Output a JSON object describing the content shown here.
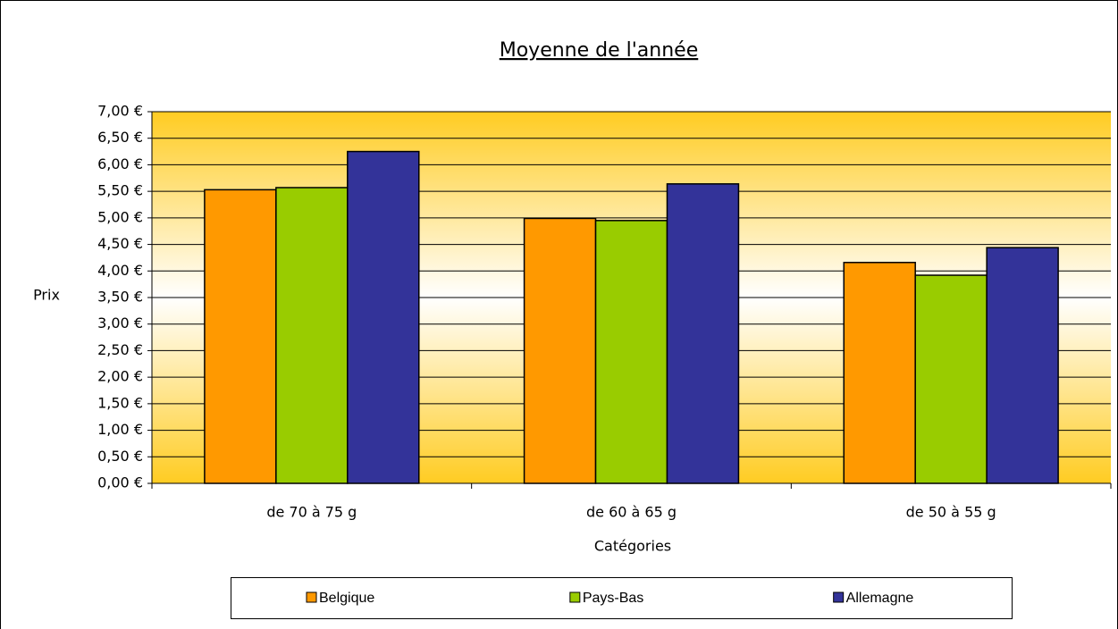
{
  "chart_data": {
    "type": "bar",
    "title": "Moyenne de l'année",
    "ylabel": "Prix",
    "xlabel": "Catégories",
    "categories": [
      "de 70 à 75 g",
      "de 60 à 65 g",
      "de 50 à 55 g"
    ],
    "series": [
      {
        "name": "Belgique",
        "color": "#ff9900",
        "values": [
          5.53,
          4.99,
          4.16
        ]
      },
      {
        "name": "Pays-Bas",
        "color": "#99cc00",
        "values": [
          5.57,
          4.95,
          3.92
        ]
      },
      {
        "name": "Allemagne",
        "color": "#333399",
        "values": [
          6.25,
          5.64,
          4.44
        ]
      }
    ],
    "ylim": [
      0,
      7
    ],
    "yticks": [
      {
        "value": 0,
        "label": "0,00 €"
      },
      {
        "value": 0.5,
        "label": "0,50 €"
      },
      {
        "value": 1,
        "label": "1,00 €"
      },
      {
        "value": 1.5,
        "label": "1,50 €"
      },
      {
        "value": 2,
        "label": "2,00 €"
      },
      {
        "value": 2.5,
        "label": "2,50 €"
      },
      {
        "value": 3,
        "label": "3,00 €"
      },
      {
        "value": 3.5,
        "label": "3,50 €"
      },
      {
        "value": 4,
        "label": "4,00 €"
      },
      {
        "value": 4.5,
        "label": "4,50 €"
      },
      {
        "value": 5,
        "label": "5,00 €"
      },
      {
        "value": 5.5,
        "label": "5,50 €"
      },
      {
        "value": 6,
        "label": "6,00 €"
      },
      {
        "value": 6.5,
        "label": "6,50 €"
      },
      {
        "value": 7,
        "label": "7,00 €"
      }
    ],
    "grid": true,
    "legend": "bottom"
  }
}
